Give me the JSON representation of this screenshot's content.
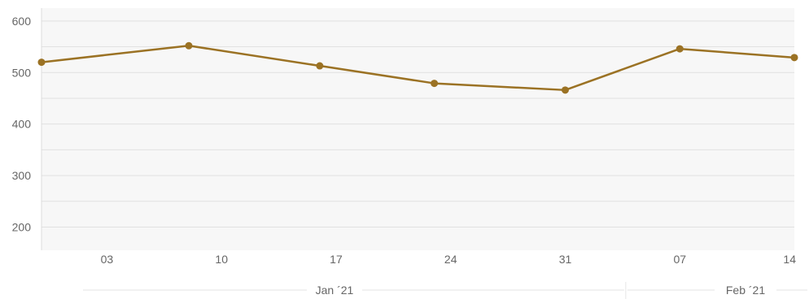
{
  "chart_data": {
    "type": "line",
    "title": "",
    "xlabel": "",
    "ylabel": "",
    "ylim": [
      155,
      625
    ],
    "y_ticks": [
      200,
      300,
      400,
      500,
      600
    ],
    "y_tick_labels": [
      "200",
      "300",
      "400",
      "500",
      "600"
    ],
    "xlim": [
      "2020-12-30",
      "2021-02-14"
    ],
    "x_ticks": [
      "2021-01-03",
      "2021-01-10",
      "2021-01-17",
      "2021-01-24",
      "2021-01-31",
      "2021-02-07",
      "2021-02-14"
    ],
    "x_tick_labels": [
      "03",
      "10",
      "17",
      "24",
      "31",
      "07",
      "14"
    ],
    "month_labels": [
      {
        "label": "Jan ´21",
        "start": "2021-01-01",
        "end": "2021-01-31"
      },
      {
        "label": "Feb ´21",
        "start": "2021-02-01",
        "end": "2021-02-14"
      }
    ],
    "grid": true,
    "series": [
      {
        "color": "#9b7224",
        "x": [
          "2020-12-30",
          "2021-01-08",
          "2021-01-16",
          "2021-01-23",
          "2021-01-31",
          "2021-02-07",
          "2021-02-14"
        ],
        "values": [
          520,
          552,
          513,
          479,
          466,
          546,
          529
        ]
      }
    ]
  }
}
